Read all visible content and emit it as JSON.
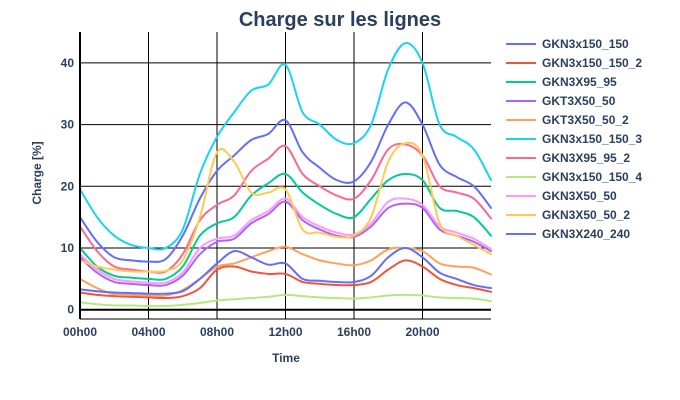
{
  "chart_data": {
    "type": "line",
    "title": "Charge sur les lignes",
    "xlabel": "Time",
    "ylabel": "Charge [%]",
    "xlim": [
      0,
      24
    ],
    "ylim": [
      -1.5,
      45
    ],
    "grid": true,
    "legend_position": "right",
    "x_ticks": [
      {
        "value": 0,
        "label": "00h00"
      },
      {
        "value": 4,
        "label": "04h00"
      },
      {
        "value": 8,
        "label": "08h00"
      },
      {
        "value": 12,
        "label": "12h00"
      },
      {
        "value": 16,
        "label": "16h00"
      },
      {
        "value": 20,
        "label": "20h00"
      }
    ],
    "y_ticks": [
      {
        "value": 0,
        "label": "0"
      },
      {
        "value": 10,
        "label": "10"
      },
      {
        "value": 20,
        "label": "20"
      },
      {
        "value": 30,
        "label": "30"
      },
      {
        "value": 40,
        "label": "40"
      }
    ],
    "x": [
      0,
      1,
      2,
      3,
      4,
      5,
      6,
      7,
      8,
      9,
      10,
      11,
      12,
      13,
      14,
      15,
      16,
      17,
      18,
      19,
      20,
      21,
      22,
      23,
      24
    ],
    "series": [
      {
        "name": "GKN3x150_150",
        "color": "#636efa",
        "values": [
          15,
          11,
          8.5,
          8,
          7.8,
          8.2,
          12,
          18,
          22.5,
          25,
          27.5,
          28.5,
          30.7,
          25.5,
          23,
          21,
          20.8,
          24,
          30,
          33.6,
          30,
          23.5,
          21.5,
          20,
          16.5
        ]
      },
      {
        "name": "GKN3x150_150_2",
        "color": "#ef553b",
        "values": [
          2.8,
          2.4,
          2.2,
          2.1,
          2,
          1.9,
          2.2,
          3.5,
          6.5,
          7,
          6.2,
          5.8,
          5.8,
          4.5,
          4.2,
          4,
          4,
          4.5,
          6.5,
          8,
          7,
          5,
          4,
          3.5,
          2.9
        ]
      },
      {
        "name": "GKN3X95_95",
        "color": "#00cc96",
        "values": [
          10,
          7,
          5.5,
          5.2,
          5,
          5,
          7,
          12,
          14,
          15,
          18.5,
          20.5,
          22,
          19,
          17,
          15.5,
          15,
          18,
          21,
          22,
          21,
          16.5,
          16,
          15,
          12
        ]
      },
      {
        "name": "GKT3X50_50",
        "color": "#ab63fa",
        "values": [
          8.5,
          6,
          4.5,
          4.2,
          4,
          4,
          5.5,
          9,
          11,
          11.5,
          14,
          15.5,
          17.5,
          14.5,
          13,
          12,
          11.8,
          13.5,
          16.5,
          17.2,
          16.5,
          13,
          12,
          11,
          9.5
        ]
      },
      {
        "name": "GKT3X50_50_2",
        "color": "#ffa15a",
        "values": [
          5,
          3.5,
          2.5,
          2.4,
          2.3,
          2.3,
          3.2,
          5,
          7,
          7.5,
          8.5,
          9.5,
          10.2,
          9,
          8,
          7.5,
          7.2,
          8,
          9.8,
          10,
          9.5,
          7.5,
          7,
          6.8,
          5.7
        ]
      },
      {
        "name": "GKN3x150_150_3",
        "color": "#19d3f3",
        "values": [
          19.5,
          15,
          12,
          10.5,
          10,
          10,
          13,
          22,
          28,
          32,
          35.5,
          36.5,
          39.7,
          32,
          30,
          27.5,
          27,
          30,
          39,
          43.2,
          40,
          30,
          28,
          26,
          21
        ]
      },
      {
        "name": "GKN3X95_95_2",
        "color": "#ff6692",
        "values": [
          13.5,
          9.5,
          7,
          6.5,
          6.2,
          6.2,
          9,
          14.5,
          17,
          18.5,
          22.5,
          24.5,
          26.5,
          22,
          20,
          18.5,
          18,
          21,
          26,
          26.8,
          25,
          20,
          19,
          18,
          14.8
        ]
      },
      {
        "name": "GKN3x150_150_4",
        "color": "#b6e880",
        "values": [
          1.2,
          0.9,
          0.7,
          0.7,
          0.6,
          0.6,
          0.8,
          1.1,
          1.5,
          1.7,
          1.9,
          2.1,
          2.4,
          2.2,
          2,
          1.9,
          1.8,
          2,
          2.3,
          2.4,
          2.3,
          2,
          1.9,
          1.8,
          1.4
        ]
      },
      {
        "name": "GKN3X50_50",
        "color": "#ff97ff",
        "values": [
          9,
          6.5,
          5,
          4.6,
          4.4,
          4.4,
          6,
          10,
          11.5,
          12,
          14.5,
          16,
          18,
          15,
          13.5,
          12.5,
          12.2,
          14,
          17.5,
          18,
          17,
          13.5,
          12.5,
          11.5,
          9.8
        ]
      },
      {
        "name": "GKN3X50_50_2",
        "color": "#fecb52",
        "values": [
          8,
          7,
          6.5,
          6.2,
          6.2,
          6.3,
          8,
          15,
          25.5,
          24,
          19,
          19,
          19.5,
          13,
          12.5,
          11.8,
          12,
          15,
          24,
          27,
          25,
          14,
          12,
          10.5,
          9
        ]
      },
      {
        "name": "GKN3X240_240",
        "color": "#636efa",
        "values": [
          3.3,
          3,
          2.8,
          2.7,
          2.6,
          2.6,
          3,
          5,
          7.5,
          9.5,
          8.5,
          7.3,
          7.5,
          5,
          4.7,
          4.5,
          4.5,
          5.5,
          8.5,
          10,
          8.5,
          6,
          5,
          4,
          3.5
        ]
      }
    ]
  }
}
